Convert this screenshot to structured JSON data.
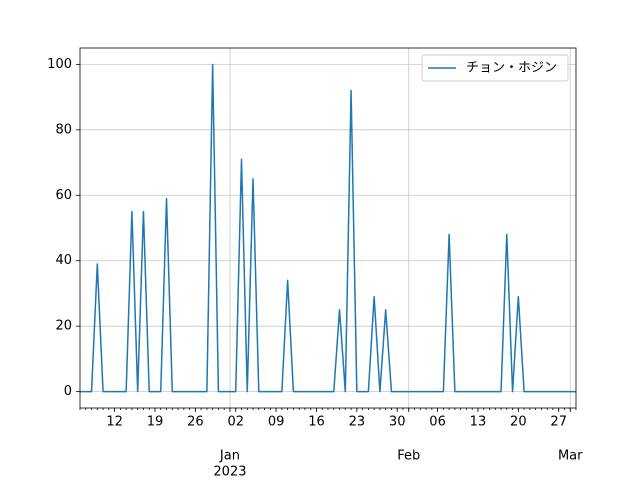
{
  "chart_data": {
    "type": "line",
    "x": [
      "2022-12-06",
      "2022-12-07",
      "2022-12-08",
      "2022-12-09",
      "2022-12-10",
      "2022-12-11",
      "2022-12-12",
      "2022-12-13",
      "2022-12-14",
      "2022-12-15",
      "2022-12-16",
      "2022-12-17",
      "2022-12-18",
      "2022-12-19",
      "2022-12-20",
      "2022-12-21",
      "2022-12-22",
      "2022-12-23",
      "2022-12-24",
      "2022-12-25",
      "2022-12-26",
      "2022-12-27",
      "2022-12-28",
      "2022-12-29",
      "2022-12-30",
      "2022-12-31",
      "2023-01-01",
      "2023-01-02",
      "2023-01-03",
      "2023-01-04",
      "2023-01-05",
      "2023-01-06",
      "2023-01-07",
      "2023-01-08",
      "2023-01-09",
      "2023-01-10",
      "2023-01-11",
      "2023-01-12",
      "2023-01-13",
      "2023-01-14",
      "2023-01-15",
      "2023-01-16",
      "2023-01-17",
      "2023-01-18",
      "2023-01-19",
      "2023-01-20",
      "2023-01-21",
      "2023-01-22",
      "2023-01-23",
      "2023-01-24",
      "2023-01-25",
      "2023-01-26",
      "2023-01-27",
      "2023-01-28",
      "2023-01-29",
      "2023-01-30",
      "2023-01-31",
      "2023-02-01",
      "2023-02-02",
      "2023-02-03",
      "2023-02-04",
      "2023-02-05",
      "2023-02-06",
      "2023-02-07",
      "2023-02-08",
      "2023-02-09",
      "2023-02-10",
      "2023-02-11",
      "2023-02-12",
      "2023-02-13",
      "2023-02-14",
      "2023-02-15",
      "2023-02-16",
      "2023-02-17",
      "2023-02-18",
      "2023-02-19",
      "2023-02-20",
      "2023-02-21",
      "2023-02-22",
      "2023-02-23",
      "2023-02-24",
      "2023-02-25",
      "2023-02-26",
      "2023-02-27",
      "2023-02-28",
      "2023-03-01",
      "2023-03-02"
    ],
    "series": [
      {
        "name": "チョン・ホジン",
        "color": "#1f77b4",
        "values": [
          0,
          0,
          0,
          39,
          0,
          0,
          0,
          0,
          0,
          55,
          0,
          55,
          0,
          0,
          0,
          59,
          0,
          0,
          0,
          0,
          0,
          0,
          0,
          100,
          0,
          0,
          0,
          0,
          71,
          0,
          65,
          0,
          0,
          0,
          0,
          0,
          34,
          0,
          0,
          0,
          0,
          0,
          0,
          0,
          0,
          25,
          0,
          92,
          0,
          0,
          0,
          29,
          0,
          25,
          0,
          0,
          0,
          0,
          0,
          0,
          0,
          0,
          0,
          0,
          48,
          0,
          0,
          0,
          0,
          0,
          0,
          0,
          0,
          0,
          48,
          0,
          29,
          0,
          0,
          0,
          0,
          0,
          0,
          0,
          0,
          0,
          0
        ]
      }
    ],
    "xlim": [
      "2022-12-06",
      "2023-03-02"
    ],
    "xticks": [
      {
        "value": "2022-12-12",
        "label": "12"
      },
      {
        "value": "2022-12-19",
        "label": "19"
      },
      {
        "value": "2022-12-26",
        "label": "26"
      },
      {
        "value": "2023-01-02",
        "label": "02"
      },
      {
        "value": "2023-01-09",
        "label": "09"
      },
      {
        "value": "2023-01-16",
        "label": "16"
      },
      {
        "value": "2023-01-23",
        "label": "23"
      },
      {
        "value": "2023-01-30",
        "label": "30"
      },
      {
        "value": "2023-02-06",
        "label": "06"
      },
      {
        "value": "2023-02-13",
        "label": "13"
      },
      {
        "value": "2023-02-20",
        "label": "20"
      },
      {
        "value": "2023-02-27",
        "label": "27"
      }
    ],
    "xticks_major": [
      {
        "value": "2023-01-01",
        "label": "Jan",
        "label2": "2023"
      },
      {
        "value": "2023-02-01",
        "label": "Feb"
      },
      {
        "value": "2023-03-01",
        "label": "Mar"
      }
    ],
    "ylim": [
      -5,
      105
    ],
    "yticks": [
      0,
      20,
      40,
      60,
      80,
      100
    ],
    "grid": true,
    "legend": "upper right"
  }
}
